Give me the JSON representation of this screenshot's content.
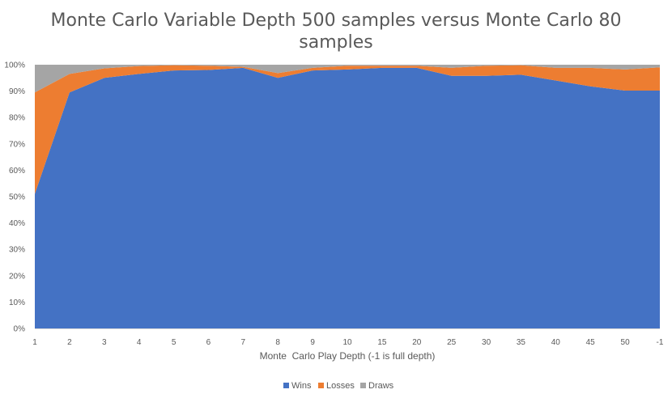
{
  "chart_data": {
    "type": "area",
    "stacked": true,
    "percent_stacked": true,
    "title_lines": [
      "Monte Carlo Variable Depth 500 samples versus Monte Carlo 80",
      "samples"
    ],
    "xlabel": "Monte  Carlo Play Depth (-1 is full depth)",
    "ylabel": "",
    "ylim": [
      0,
      100
    ],
    "yticks": [
      "0%",
      "10%",
      "20%",
      "30%",
      "40%",
      "50%",
      "60%",
      "70%",
      "80%",
      "90%",
      "100%"
    ],
    "categories": [
      "1",
      "2",
      "3",
      "4",
      "5",
      "6",
      "7",
      "8",
      "9",
      "10",
      "15",
      "20",
      "25",
      "30",
      "35",
      "40",
      "45",
      "50",
      "-1"
    ],
    "series": [
      {
        "name": "Wins",
        "color": "#4472C4",
        "values": [
          51,
          89.5,
          95,
          96.5,
          97.8,
          98,
          98.8,
          95,
          97.8,
          98.2,
          98.8,
          98.8,
          95.8,
          95.8,
          96.2,
          94,
          91.8,
          90.2,
          90.2
        ]
      },
      {
        "name": "Losses",
        "color": "#ED7D31",
        "values": [
          38.5,
          7,
          3.6,
          3,
          2,
          1.6,
          0.4,
          1.8,
          1,
          1.4,
          0.8,
          0.8,
          3,
          3.8,
          3.6,
          4.8,
          7,
          8,
          8.8
        ]
      },
      {
        "name": "Draws",
        "color": "#A5A5A5",
        "values": [
          10.5,
          3.5,
          1.4,
          0.5,
          0.2,
          0.4,
          0.8,
          3.2,
          1.2,
          0.4,
          0.4,
          0.4,
          1.2,
          0.4,
          0.2,
          1.2,
          1.2,
          1.8,
          1
        ]
      }
    ],
    "grid": false,
    "legend_position": "bottom"
  }
}
